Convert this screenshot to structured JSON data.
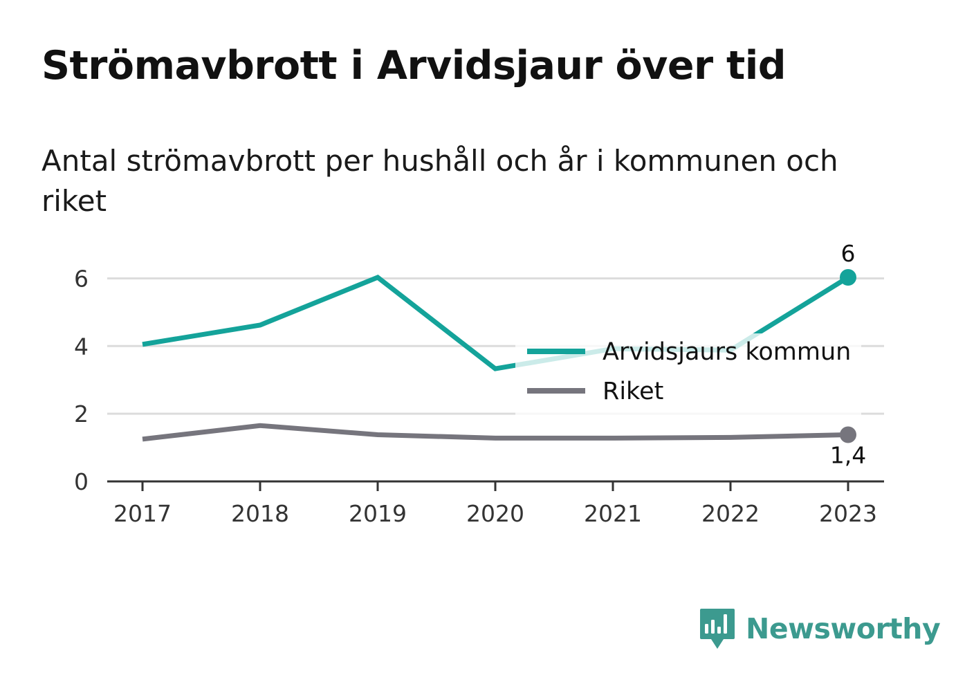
{
  "header": {
    "title": "Strömavbrott i Arvidsjaur över tid",
    "subtitle": "Antal strömavbrott per hushåll och år i kommunen och riket"
  },
  "chart_data": {
    "type": "line",
    "x": [
      2017,
      2018,
      2019,
      2020,
      2021,
      2022,
      2023
    ],
    "x_tick_labels": [
      "2017",
      "2018",
      "2019",
      "2020",
      "2021",
      "2022",
      "2023"
    ],
    "ylim": [
      0,
      6.5
    ],
    "y_ticks": [
      0,
      2,
      4,
      6
    ],
    "y_tick_labels": [
      "0",
      "2",
      "4",
      "6"
    ],
    "grid": true,
    "legend_position": "right",
    "series": [
      {
        "name": "Arvidsjaurs kommun",
        "color": "#14a39a",
        "values": [
          4.05,
          4.62,
          6.03,
          3.33,
          3.92,
          3.88,
          6.03
        ],
        "end_label": "6"
      },
      {
        "name": "Riket",
        "color": "#76757d",
        "values": [
          1.25,
          1.65,
          1.38,
          1.28,
          1.28,
          1.3,
          1.38
        ],
        "end_label": "1,4"
      }
    ]
  },
  "branding": {
    "name": "Newsworthy",
    "color": "#3c9a8f",
    "icon": "newsworthy-logo-icon"
  }
}
